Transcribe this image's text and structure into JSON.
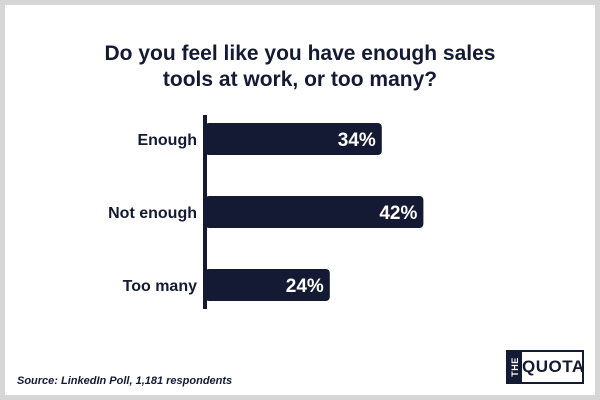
{
  "title_lines": [
    "Do you feel like you have enough sales",
    "tools at work, or too many?"
  ],
  "source": "Source: LinkedIn Poll, 1,181 respondents",
  "logo": {
    "the": "THE",
    "word": "QUOTA"
  },
  "colors": {
    "bar": "#141a33",
    "text": "#141a33",
    "bar_label": "#ffffff"
  },
  "chart_data": {
    "type": "bar",
    "orientation": "horizontal",
    "categories": [
      "Enough",
      "Not enough",
      "Too many"
    ],
    "values": [
      34,
      42,
      24
    ],
    "value_labels": [
      "34%",
      "42%",
      "24%"
    ],
    "unit": "%",
    "title": "Do you feel like you have enough sales tools at work, or too many?",
    "xlim": [
      0,
      100
    ],
    "grid": false,
    "legend": "none"
  }
}
